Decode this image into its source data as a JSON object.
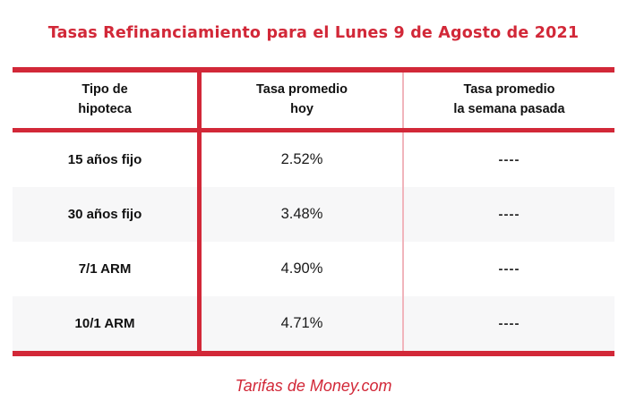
{
  "title": "Tasas Refinanciamiento para el Lunes 9 de Agosto de 2021",
  "table": {
    "headers": [
      "Tipo de\nhipoteca",
      "Tasa promedio\nhoy",
      "Tasa promedio\nla semana pasada"
    ],
    "rows": [
      {
        "label": "15 años fijo",
        "today": "2.52%",
        "last_week": "----"
      },
      {
        "label": "30 años fijo",
        "today": "3.48%",
        "last_week": "----"
      },
      {
        "label": "7/1 ARM",
        "today": "4.90%",
        "last_week": "----"
      },
      {
        "label": "10/1 ARM",
        "today": "4.71%",
        "last_week": "----"
      }
    ]
  },
  "footer": "Tarifas de Money.com",
  "colors": {
    "accent_red": "#D22838",
    "divider_pink": "#F1B5BC",
    "row_alt_gray": "#F7F7F8",
    "text": "#1A1A1A"
  },
  "chart_data": {
    "type": "table",
    "title": "Tasas Refinanciamiento para el Lunes 9 de Agosto de 2021",
    "columns": [
      "Tipo de hipoteca",
      "Tasa promedio hoy",
      "Tasa promedio la semana pasada"
    ],
    "rows": [
      [
        "15 años fijo",
        "2.52%",
        "----"
      ],
      [
        "30 años fijo",
        "3.48%",
        "----"
      ],
      [
        "7/1 ARM",
        "4.90%",
        "----"
      ],
      [
        "10/1 ARM",
        "4.71%",
        "----"
      ]
    ],
    "rates_today_numeric_percent": [
      2.52,
      3.48,
      4.9,
      4.71
    ],
    "source": "Tarifas de Money.com"
  }
}
